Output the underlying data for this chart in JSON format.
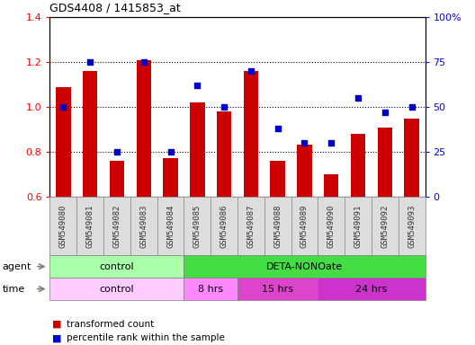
{
  "title": "GDS4408 / 1415853_at",
  "samples": [
    "GSM549080",
    "GSM549081",
    "GSM549082",
    "GSM549083",
    "GSM549084",
    "GSM549085",
    "GSM549086",
    "GSM549087",
    "GSM549088",
    "GSM549089",
    "GSM549090",
    "GSM549091",
    "GSM549092",
    "GSM549093"
  ],
  "transformed_count": [
    1.09,
    1.16,
    0.76,
    1.21,
    0.77,
    1.02,
    0.98,
    1.16,
    0.76,
    0.83,
    0.7,
    0.88,
    0.91,
    0.95
  ],
  "percentile_rank": [
    50,
    75,
    25,
    75,
    25,
    62,
    50,
    70,
    38,
    30,
    30,
    55,
    47,
    50
  ],
  "ylim_left": [
    0.6,
    1.4
  ],
  "ylim_right": [
    0,
    100
  ],
  "yticks_left": [
    0.6,
    0.8,
    1.0,
    1.2,
    1.4
  ],
  "yticks_right": [
    0,
    25,
    50,
    75,
    100
  ],
  "bar_color": "#cc0000",
  "scatter_color": "#0000cc",
  "agent_control_color": "#aaffaa",
  "agent_treatment_color": "#44dd44",
  "time_control_color": "#ffccff",
  "time_8hrs_color": "#ff88ff",
  "time_15hrs_color": "#dd44cc",
  "time_24hrs_color": "#cc33cc",
  "agent_row": [
    {
      "label": "control",
      "span": [
        0,
        5
      ]
    },
    {
      "label": "DETA-NONOate",
      "span": [
        5,
        14
      ]
    }
  ],
  "time_row": [
    {
      "label": "control",
      "span": [
        0,
        5
      ],
      "color": "#ffccff"
    },
    {
      "label": "8 hrs",
      "span": [
        5,
        7
      ],
      "color": "#ff88ff"
    },
    {
      "label": "15 hrs",
      "span": [
        7,
        10
      ],
      "color": "#dd44cc"
    },
    {
      "label": "24 hrs",
      "span": [
        10,
        14
      ],
      "color": "#cc33cc"
    }
  ],
  "grid_lines": [
    0.8,
    1.0,
    1.2
  ],
  "xticklabel_bg": "#dddddd"
}
